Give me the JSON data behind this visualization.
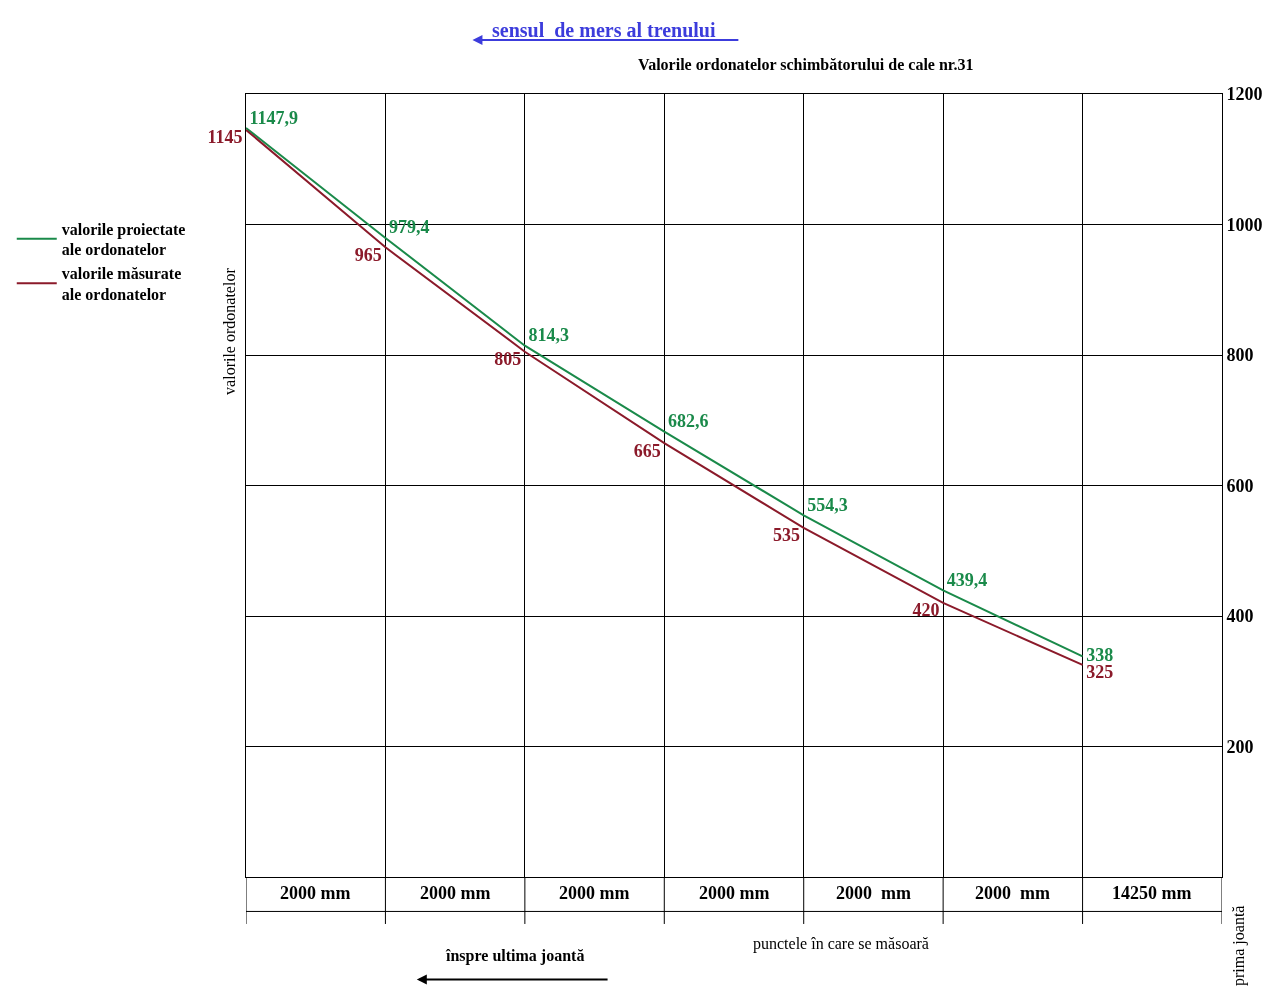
{
  "chart_data": {
    "type": "line",
    "title": "Valorile ordonatelor schimbătorului de cale nr.31",
    "xlabel": "punctele în care se măsoară",
    "ylabel": "valorile ordonatelor",
    "categories": [
      null,
      null,
      null,
      null,
      null,
      null,
      null,
      null
    ],
    "series": [
      {
        "name": "valorile proiectate\nale ordonatelor",
        "color": "#1a8a4a",
        "values": [
          1147.9,
          979.4,
          814.3,
          682.6,
          554.3,
          439.4,
          338,
          null
        ],
        "value_labels": [
          "1147,9",
          "979,4",
          "814,3",
          "682,6",
          "554,3",
          "439,4",
          "338",
          null
        ]
      },
      {
        "name": "valorile măsurate\nale ordonatelor",
        "color": "#8b1a2a",
        "values": [
          1145,
          965,
          805,
          665,
          535,
          420,
          325,
          null
        ],
        "value_labels": [
          "1145",
          "965",
          "805",
          "665",
          "535",
          "420",
          "325",
          null
        ]
      }
    ],
    "ylim": [
      0,
      1200
    ],
    "yticks": [
      200,
      400,
      600,
      800,
      1000,
      1200
    ],
    "grid": true,
    "legend": "left",
    "marker": "none",
    "line_style": "solid",
    "annotations": [
      "2000 mm",
      "2000 mm",
      "2000 mm",
      "2000 mm",
      "2000  mm",
      "2000  mm",
      "14250 mm",
      "sensul  de mers al trenului",
      "înspre ultima joantă",
      "prima joantă"
    ]
  }
}
